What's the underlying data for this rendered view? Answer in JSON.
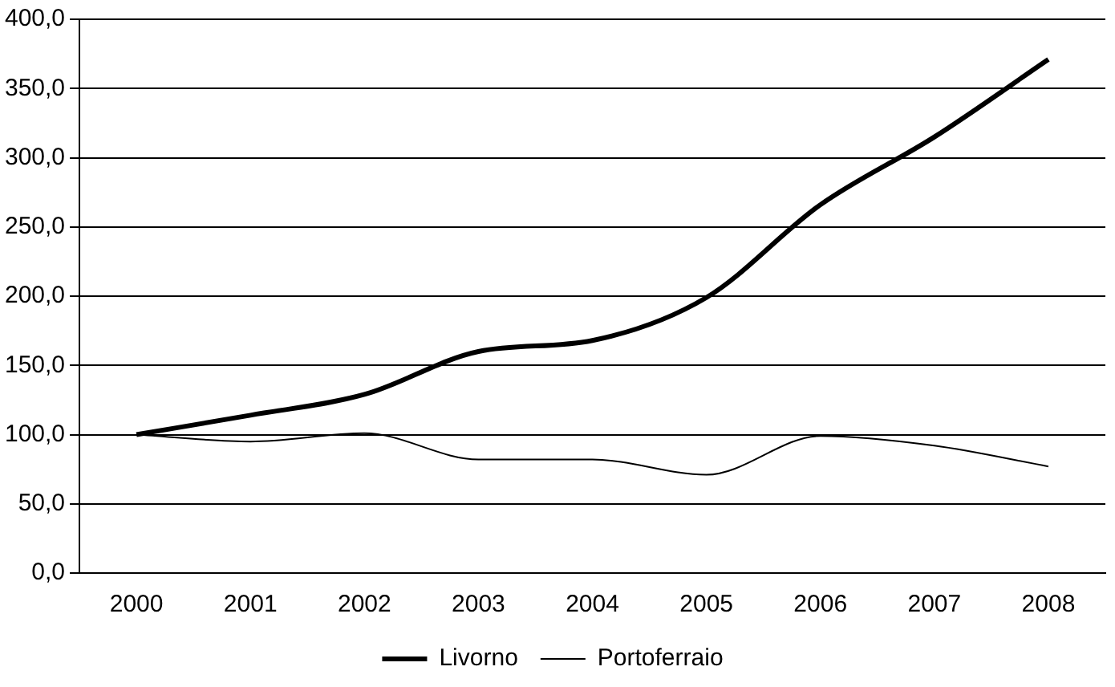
{
  "chart_data": {
    "type": "line",
    "categories": [
      "2000",
      "2001",
      "2002",
      "2003",
      "2004",
      "2005",
      "2006",
      "2007",
      "2008"
    ],
    "series": [
      {
        "name": "Livorno",
        "color": "#000000",
        "values": [
          100,
          114,
          129,
          160,
          168,
          199,
          266,
          315,
          371
        ]
      },
      {
        "name": "Portoferraio",
        "color": "#000000",
        "values": [
          100,
          95,
          101,
          82,
          82,
          71,
          99,
          92,
          77
        ]
      }
    ],
    "ylim": [
      0,
      400
    ],
    "yticks": [
      {
        "value": 0,
        "label": "0,0"
      },
      {
        "value": 50,
        "label": "50,0"
      },
      {
        "value": 100,
        "label": "100,0"
      },
      {
        "value": 150,
        "label": "150,0"
      },
      {
        "value": 200,
        "label": "200,0"
      },
      {
        "value": 250,
        "label": "250,0"
      },
      {
        "value": 300,
        "label": "300,0"
      },
      {
        "value": 350,
        "label": "350,0"
      },
      {
        "value": 400,
        "label": "400,0"
      }
    ],
    "grid": "y",
    "legend": "bottom",
    "marker": "none"
  }
}
